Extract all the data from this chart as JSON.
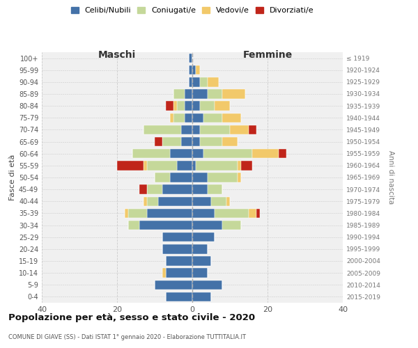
{
  "age_groups": [
    "0-4",
    "5-9",
    "10-14",
    "15-19",
    "20-24",
    "25-29",
    "30-34",
    "35-39",
    "40-44",
    "45-49",
    "50-54",
    "55-59",
    "60-64",
    "65-69",
    "70-74",
    "75-79",
    "80-84",
    "85-89",
    "90-94",
    "95-99",
    "100+"
  ],
  "birth_years": [
    "2015-2019",
    "2010-2014",
    "2005-2009",
    "2000-2004",
    "1995-1999",
    "1990-1994",
    "1985-1989",
    "1980-1984",
    "1975-1979",
    "1970-1974",
    "1965-1969",
    "1960-1964",
    "1955-1959",
    "1950-1954",
    "1945-1949",
    "1940-1944",
    "1935-1939",
    "1930-1934",
    "1925-1929",
    "1920-1924",
    "≤ 1919"
  ],
  "colors": {
    "celibi": "#4472a8",
    "coniugati": "#c5d89a",
    "vedovi": "#f2c96a",
    "divorziati": "#c0251a"
  },
  "maschi": {
    "celibi": [
      7,
      10,
      7,
      7,
      8,
      8,
      14,
      12,
      9,
      8,
      6,
      4,
      6,
      3,
      3,
      2,
      2,
      2,
      1,
      1,
      1
    ],
    "coniugati": [
      0,
      0,
      0,
      0,
      0,
      0,
      3,
      5,
      3,
      4,
      4,
      8,
      10,
      5,
      10,
      3,
      2,
      3,
      0,
      0,
      0
    ],
    "vedovi": [
      0,
      0,
      1,
      0,
      0,
      0,
      0,
      1,
      1,
      0,
      0,
      1,
      0,
      0,
      0,
      1,
      1,
      0,
      0,
      0,
      0
    ],
    "divorziati": [
      0,
      0,
      0,
      0,
      0,
      0,
      0,
      0,
      0,
      2,
      0,
      7,
      0,
      2,
      0,
      0,
      2,
      0,
      0,
      0,
      0
    ]
  },
  "femmine": {
    "celibi": [
      5,
      8,
      4,
      5,
      4,
      6,
      8,
      6,
      5,
      4,
      4,
      1,
      3,
      2,
      2,
      3,
      2,
      4,
      2,
      1,
      0
    ],
    "coniugati": [
      0,
      0,
      0,
      0,
      0,
      0,
      5,
      9,
      4,
      4,
      8,
      11,
      13,
      6,
      8,
      5,
      4,
      4,
      2,
      0,
      0
    ],
    "vedovi": [
      0,
      0,
      0,
      0,
      0,
      0,
      0,
      2,
      1,
      0,
      1,
      1,
      7,
      4,
      5,
      5,
      4,
      6,
      3,
      1,
      0
    ],
    "divorziati": [
      0,
      0,
      0,
      0,
      0,
      0,
      0,
      1,
      0,
      0,
      0,
      3,
      2,
      0,
      2,
      0,
      0,
      0,
      0,
      0,
      0
    ]
  },
  "xlim": 40,
  "title": "Popolazione per età, sesso e stato civile - 2020",
  "subtitle": "COMUNE DI GIAVE (SS) - Dati ISTAT 1° gennaio 2020 - Elaborazione TUTTITALIA.IT",
  "xlabel_left": "Maschi",
  "xlabel_right": "Femmine",
  "ylabel": "Fasce di età",
  "ylabel_right": "Anni di nascita",
  "legend_labels": [
    "Celibi/Nubili",
    "Coniugati/e",
    "Vedovi/e",
    "Divorziati/e"
  ],
  "bg_color": "#f0f0f0"
}
